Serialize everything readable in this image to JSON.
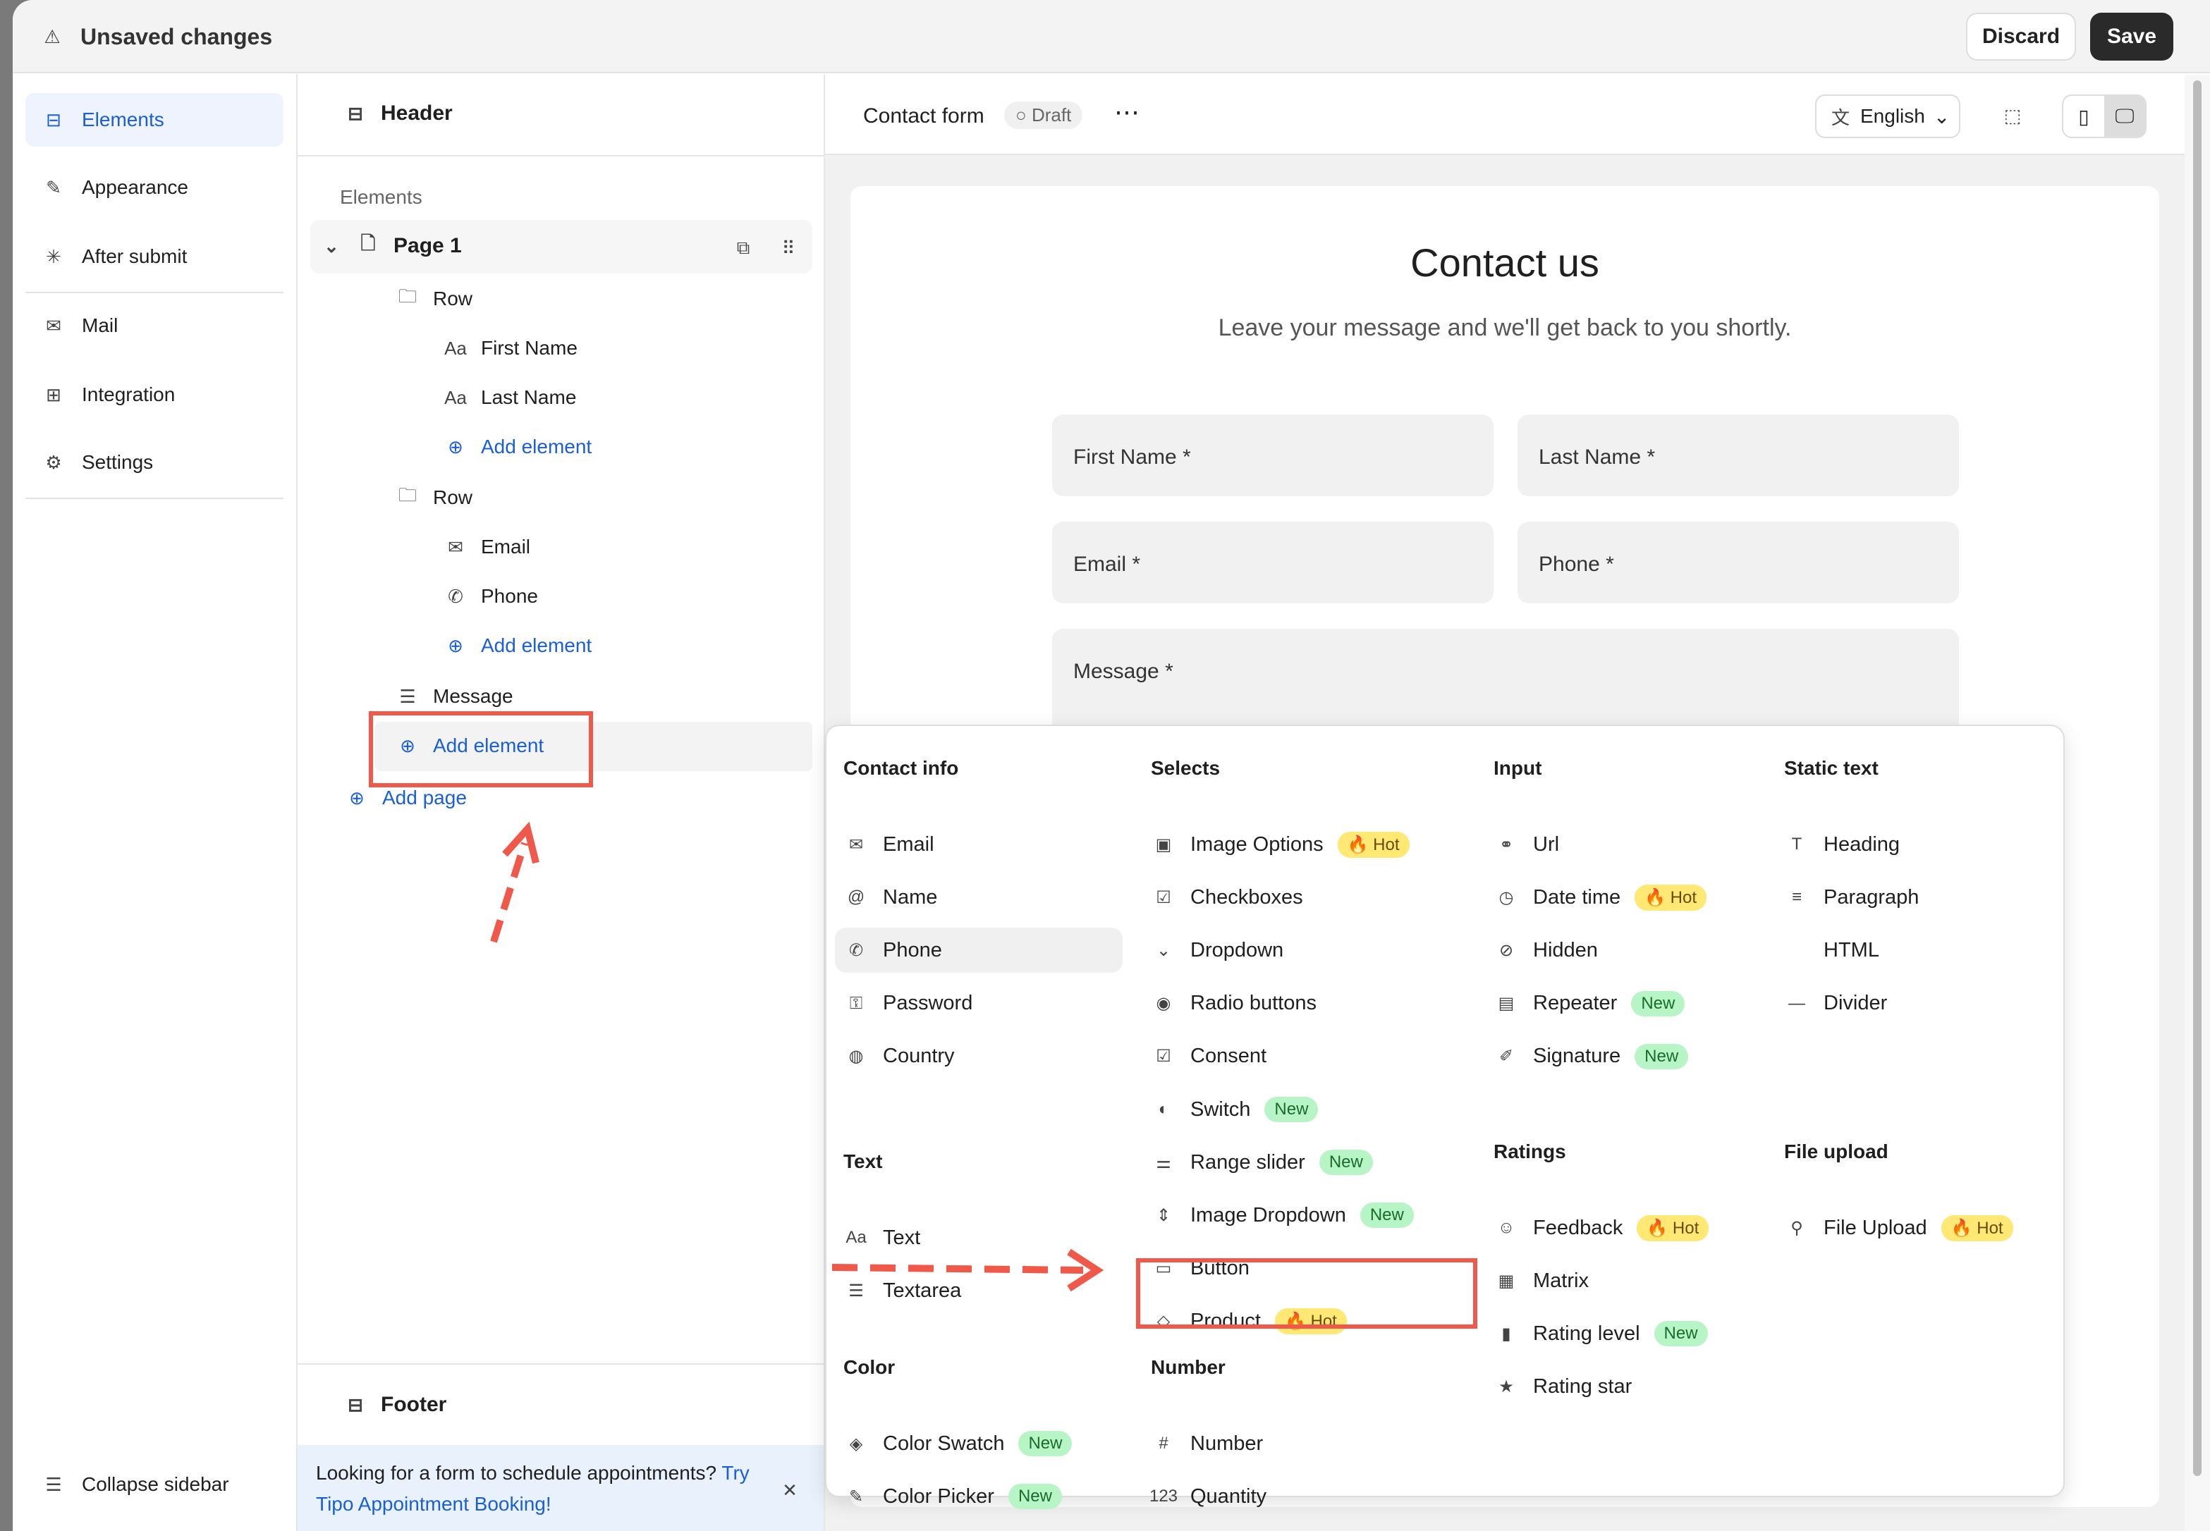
{
  "topbar": {
    "title": "Unsaved changes",
    "discard": "Discard",
    "save": "Save"
  },
  "sidebar": {
    "items": [
      {
        "label": "Elements",
        "icon": "elements-icon"
      },
      {
        "label": "Appearance",
        "icon": "brush-icon"
      },
      {
        "label": "After submit",
        "icon": "click-icon"
      },
      {
        "label": "Mail",
        "icon": "mail-icon"
      },
      {
        "label": "Integration",
        "icon": "integration-icon"
      },
      {
        "label": "Settings",
        "icon": "gear-icon"
      }
    ],
    "collapse": "Collapse sidebar"
  },
  "panel": {
    "header": "Header",
    "section": "Elements",
    "page": "Page 1",
    "row1": "Row",
    "first": "First Name",
    "last": "Last Name",
    "add": "Add element",
    "row2": "Row",
    "email": "Email",
    "phone": "Phone",
    "message": "Message",
    "add_page": "Add page",
    "footer": "Footer",
    "banner": "Looking for a form to schedule appointments? ",
    "banner_link": "Try Tipo Appointment Booking!"
  },
  "toolbar": {
    "form_name": "Contact form",
    "status": "Draft",
    "language": "English"
  },
  "form": {
    "title": "Contact us",
    "subtitle": "Leave your message and we'll get back to you shortly.",
    "fields": [
      "First Name",
      "Last Name",
      "Email",
      "Phone",
      "Message"
    ]
  },
  "badges": {
    "hot": "🔥 Hot",
    "new": "New"
  },
  "colors": {
    "accent": "#1a5fd6",
    "annotation": "#f0584a",
    "hot": "#ffe873",
    "new": "#b8f5c6"
  },
  "menu": {
    "sections": [
      {
        "title": "Contact info",
        "items": [
          {
            "label": "Email",
            "icon": "✉"
          },
          {
            "label": "Name",
            "icon": "@"
          },
          {
            "label": "Phone",
            "icon": "✆",
            "hover": true
          },
          {
            "label": "Password",
            "icon": "⚿"
          },
          {
            "label": "Country",
            "icon": "◍"
          }
        ]
      },
      {
        "title": "Text",
        "items": [
          {
            "label": "Text",
            "icon": "Aa"
          },
          {
            "label": "Textarea",
            "icon": "☰"
          }
        ]
      },
      {
        "title": "Color",
        "items": [
          {
            "label": "Color Swatch",
            "icon": "◈",
            "badge": "new"
          },
          {
            "label": "Color Picker",
            "icon": "✎",
            "badge": "new"
          }
        ]
      },
      {
        "title": "Selects",
        "items": [
          {
            "label": "Image Options",
            "icon": "▣",
            "badge": "hot"
          },
          {
            "label": "Checkboxes",
            "icon": "☑"
          },
          {
            "label": "Dropdown",
            "icon": "⌄"
          },
          {
            "label": "Radio buttons",
            "icon": "◉"
          },
          {
            "label": "Consent",
            "icon": "☑"
          },
          {
            "label": "Switch",
            "icon": "◐",
            "badge": "new"
          },
          {
            "label": "Range slider",
            "icon": "⚌",
            "badge": "new"
          },
          {
            "label": "Image Dropdown",
            "icon": "⇕",
            "badge": "new"
          },
          {
            "label": "Button",
            "icon": "▭"
          },
          {
            "label": "Product",
            "icon": "◇",
            "badge": "hot"
          }
        ]
      },
      {
        "title": "Number",
        "items": [
          {
            "label": "Number",
            "icon": "#"
          },
          {
            "label": "Quantity",
            "icon": "123"
          }
        ]
      },
      {
        "title": "Input",
        "items": [
          {
            "label": "Url",
            "icon": "⚭"
          },
          {
            "label": "Date time",
            "icon": "◷",
            "badge": "hot"
          },
          {
            "label": "Hidden",
            "icon": "⊘"
          },
          {
            "label": "Repeater",
            "icon": "▤",
            "badge": "new"
          },
          {
            "label": "Signature",
            "icon": "✐",
            "badge": "new"
          }
        ]
      },
      {
        "title": "Ratings",
        "items": [
          {
            "label": "Feedback",
            "icon": "☺",
            "badge": "hot"
          },
          {
            "label": "Matrix",
            "icon": "▦"
          },
          {
            "label": "Rating level",
            "icon": "▮",
            "badge": "new"
          },
          {
            "label": "Rating star",
            "icon": "★"
          }
        ]
      },
      {
        "title": "Static text",
        "items": [
          {
            "label": "Heading",
            "icon": "T"
          },
          {
            "label": "Paragraph",
            "icon": "≡"
          },
          {
            "label": "HTML",
            "icon": "</>"
          },
          {
            "label": "Divider",
            "icon": "—"
          }
        ]
      },
      {
        "title": "File upload",
        "items": [
          {
            "label": "File Upload",
            "icon": "⚲",
            "badge": "hot"
          }
        ]
      }
    ]
  }
}
